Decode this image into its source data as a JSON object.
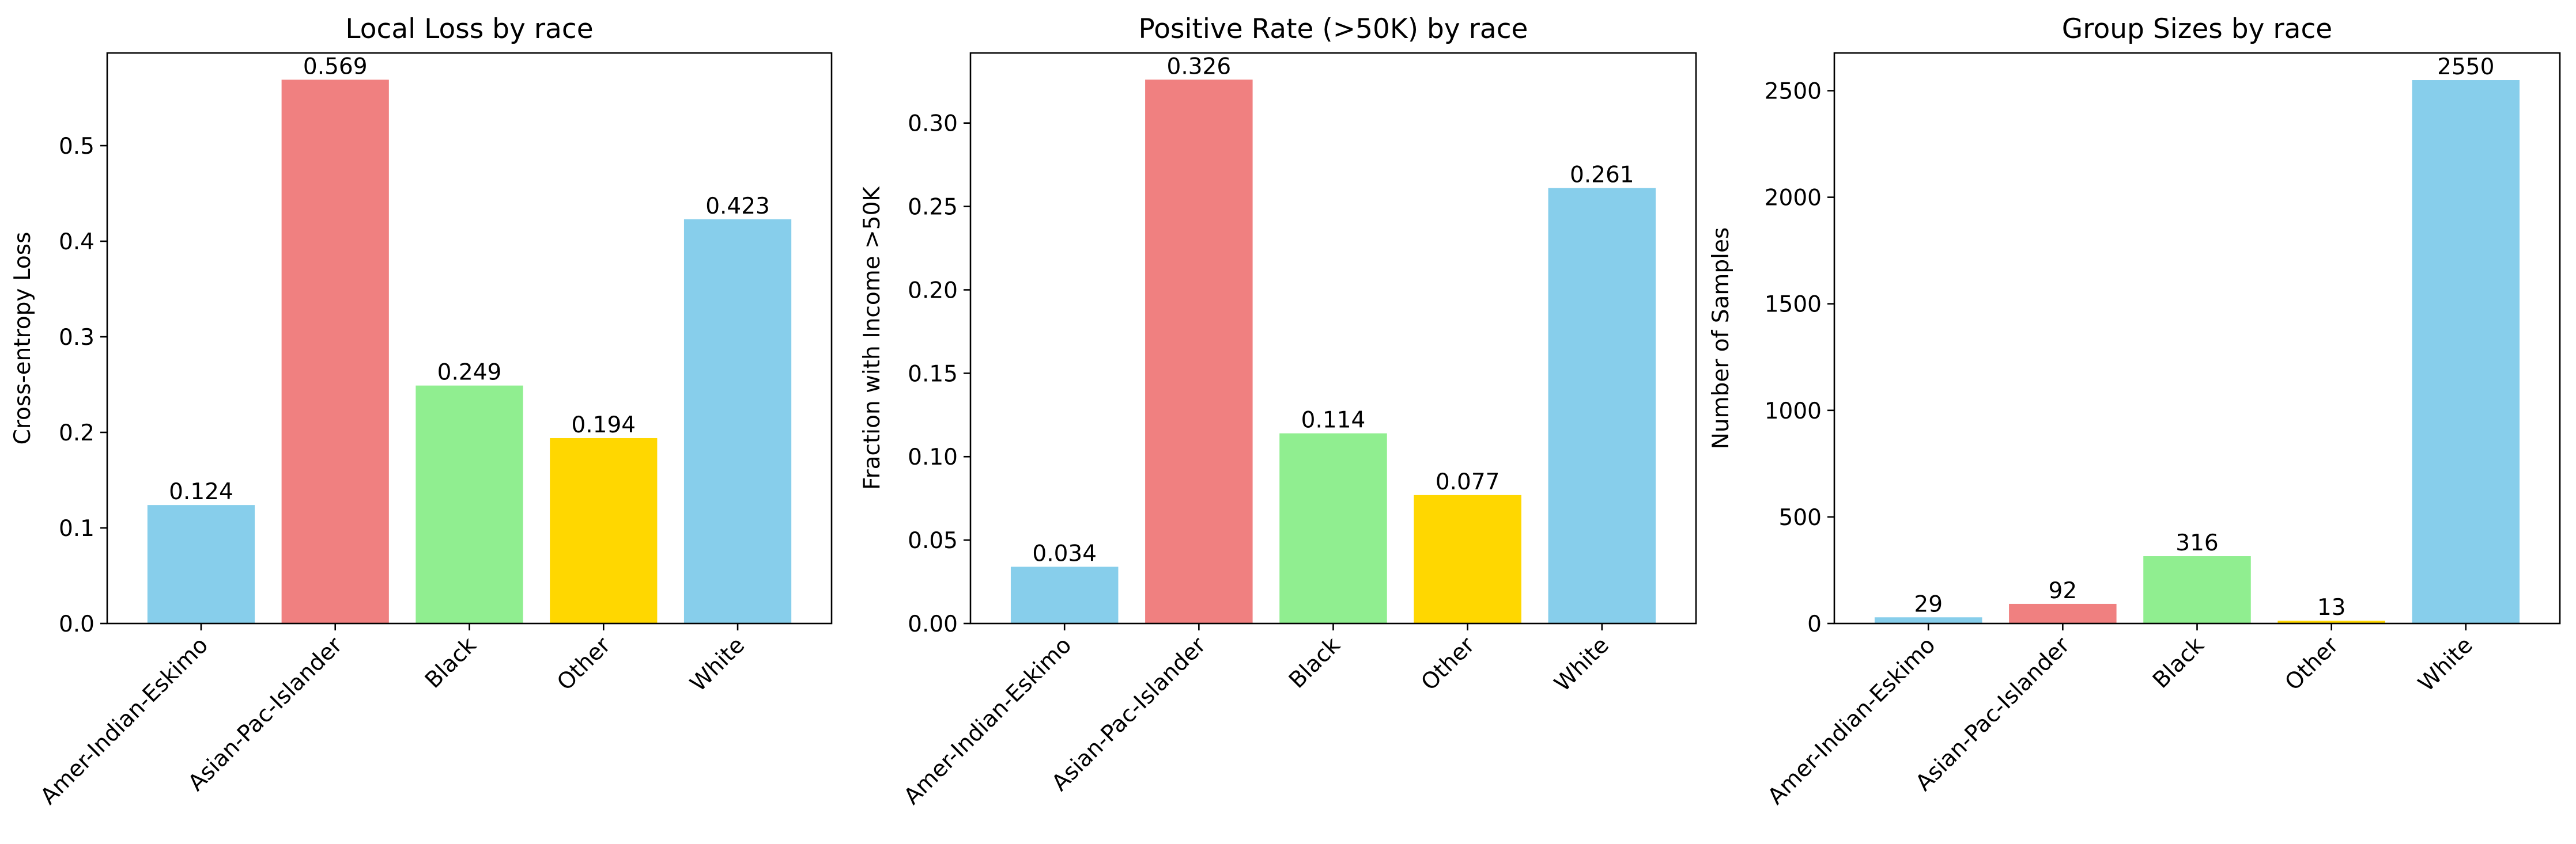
{
  "chart_data": [
    {
      "type": "bar",
      "title": "Local Loss by race",
      "xlabel": "",
      "ylabel": "Cross-entropy Loss",
      "categories": [
        "Amer-Indian-Eskimo",
        "Asian-Pac-Islander",
        "Black",
        "Other",
        "White"
      ],
      "values": [
        0.124,
        0.569,
        0.249,
        0.194,
        0.423
      ],
      "value_labels": [
        "0.124",
        "0.569",
        "0.249",
        "0.194",
        "0.423"
      ],
      "ylim": [
        0,
        0.597
      ],
      "yticks": [
        0.0,
        0.1,
        0.2,
        0.3,
        0.4,
        0.5
      ],
      "ytick_labels": [
        "0.0",
        "0.1",
        "0.2",
        "0.3",
        "0.4",
        "0.5"
      ],
      "colors": [
        "#87CEEB",
        "#F08080",
        "#90EE90",
        "#FFD700",
        "#87CEEB"
      ],
      "grid": false
    },
    {
      "type": "bar",
      "title": "Positive Rate (>50K) by race",
      "xlabel": "",
      "ylabel": "Fraction with Income >50K",
      "categories": [
        "Amer-Indian-Eskimo",
        "Asian-Pac-Islander",
        "Black",
        "Other",
        "White"
      ],
      "values": [
        0.034,
        0.326,
        0.114,
        0.077,
        0.261
      ],
      "value_labels": [
        "0.034",
        "0.326",
        "0.114",
        "0.077",
        "0.261"
      ],
      "ylim": [
        0,
        0.342
      ],
      "yticks": [
        0.0,
        0.05,
        0.1,
        0.15,
        0.2,
        0.25,
        0.3
      ],
      "ytick_labels": [
        "0.00",
        "0.05",
        "0.10",
        "0.15",
        "0.20",
        "0.25",
        "0.30"
      ],
      "colors": [
        "#87CEEB",
        "#F08080",
        "#90EE90",
        "#FFD700",
        "#87CEEB"
      ],
      "grid": false
    },
    {
      "type": "bar",
      "title": "Group Sizes by race",
      "xlabel": "",
      "ylabel": "Number of Samples",
      "categories": [
        "Amer-Indian-Eskimo",
        "Asian-Pac-Islander",
        "Black",
        "Other",
        "White"
      ],
      "values": [
        29,
        92,
        316,
        13,
        2550
      ],
      "value_labels": [
        "29",
        "92",
        "316",
        "13",
        "2550"
      ],
      "ylim": [
        0,
        2677
      ],
      "yticks": [
        0,
        500,
        1000,
        1500,
        2000,
        2500
      ],
      "ytick_labels": [
        "0",
        "500",
        "1000",
        "1500",
        "2000",
        "2500"
      ],
      "colors": [
        "#87CEEB",
        "#F08080",
        "#90EE90",
        "#FFD700",
        "#87CEEB"
      ],
      "grid": false
    }
  ]
}
